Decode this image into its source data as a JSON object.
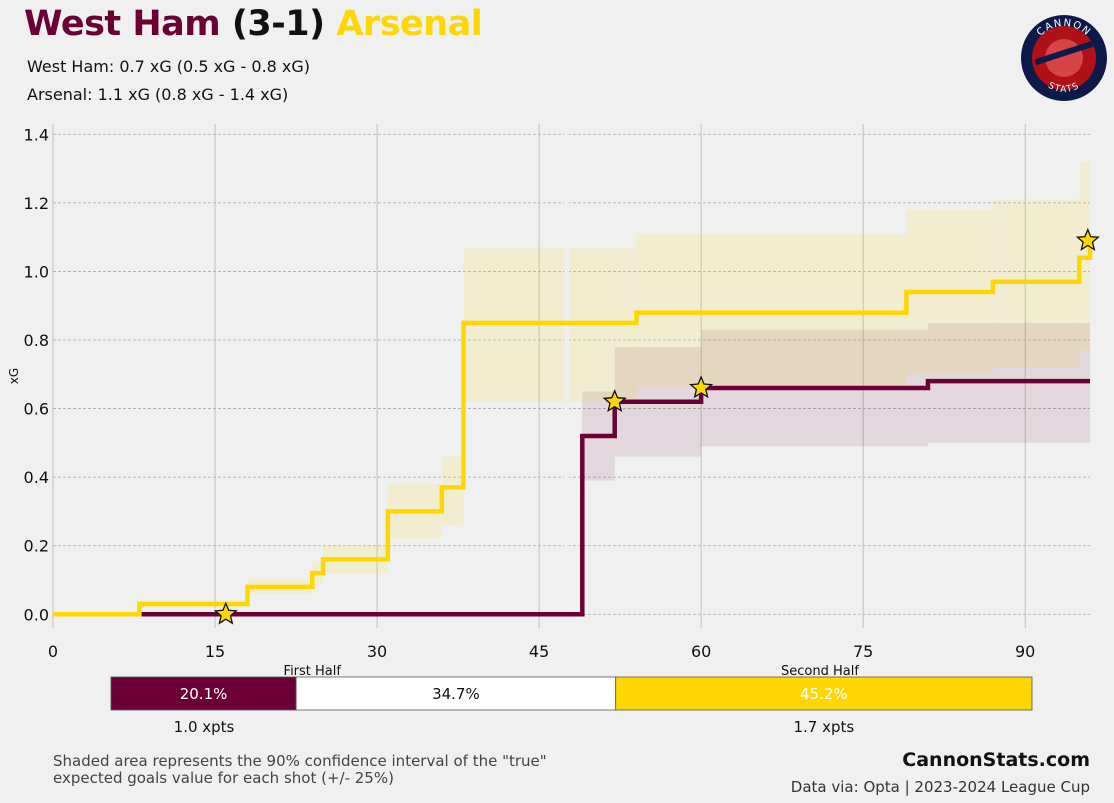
{
  "header": {
    "home_team": "West Ham",
    "score": "(3-1)",
    "away_team": "Arsenal",
    "home_line": "West Ham: 0.7 xG (0.5 xG - 0.8 xG)",
    "away_line": "Arsenal: 1.1 xG (0.8 xG - 1.4 xG)"
  },
  "colors": {
    "home": "#6b0035",
    "away": "#ffd700",
    "background": "#f0f0f0"
  },
  "logo": {
    "text_top": "CANNON",
    "text_bottom": "STATS",
    "icon": "cannon-logo-icon"
  },
  "chart_data": {
    "type": "line",
    "step": true,
    "ylabel": "xG",
    "xlim": [
      0,
      96
    ],
    "ylim": [
      -0.04,
      1.43
    ],
    "xticks": [
      0,
      15,
      30,
      45,
      60,
      75,
      90
    ],
    "yticks": [
      0.0,
      0.2,
      0.4,
      0.6,
      0.8,
      1.0,
      1.2,
      1.4
    ],
    "half_labels": [
      "First Half",
      "Second Half"
    ],
    "grid": true,
    "series": [
      {
        "name": "West Ham",
        "color": "#6b0035",
        "x": [
          0,
          48,
          49,
          52,
          60,
          81,
          96
        ],
        "y": [
          0.0,
          0.0,
          0.52,
          0.62,
          0.66,
          0.68,
          0.68
        ],
        "band_low": [
          0.0,
          0.0,
          0.39,
          0.46,
          0.49,
          0.5,
          0.5
        ],
        "band_high": [
          0.0,
          0.0,
          0.65,
          0.78,
          0.83,
          0.85,
          0.85
        ],
        "goals": [
          [
            52,
            0.62
          ],
          [
            60,
            0.66
          ]
        ]
      },
      {
        "name": "Arsenal",
        "color": "#ffd700",
        "x": [
          0,
          8,
          18,
          24,
          25,
          31,
          36,
          38,
          48,
          54,
          79,
          87,
          95,
          96
        ],
        "y": [
          0.0,
          0.03,
          0.08,
          0.12,
          0.16,
          0.3,
          0.37,
          0.85,
          0.85,
          0.88,
          0.94,
          0.97,
          1.04,
          1.09
        ],
        "band_low": [
          0.0,
          0.02,
          0.06,
          0.09,
          0.12,
          0.22,
          0.26,
          0.62,
          0.62,
          0.66,
          0.7,
          0.72,
          0.77,
          0.8
        ],
        "band_high": [
          0.0,
          0.04,
          0.1,
          0.15,
          0.2,
          0.38,
          0.46,
          1.07,
          1.07,
          1.11,
          1.18,
          1.21,
          1.32,
          1.38
        ],
        "goals": [
          [
            16,
            0.0
          ],
          [
            95.8,
            1.09
          ]
        ]
      }
    ],
    "outcome_bar": {
      "segments": [
        {
          "label": "20.1%",
          "value": 20.1,
          "color": "#6b0035",
          "text_color": "#ffffff"
        },
        {
          "label": "34.7%",
          "value": 34.7,
          "color": "#ffffff",
          "text_color": "#111111"
        },
        {
          "label": "45.2%",
          "value": 45.2,
          "color": "#ffd700",
          "text_color": "#ffffff"
        }
      ],
      "xpts_home": "1.0 xpts",
      "xpts_away": "1.7 xpts"
    }
  },
  "footer": {
    "note_line1": "Shaded area represents the 90% confidence interval of the \"true\"",
    "note_line2": "expected goals value for each shot (+/- 25%)",
    "brand": "CannonStats.com",
    "source": "Data via: Opta | 2023-2024 League Cup"
  }
}
